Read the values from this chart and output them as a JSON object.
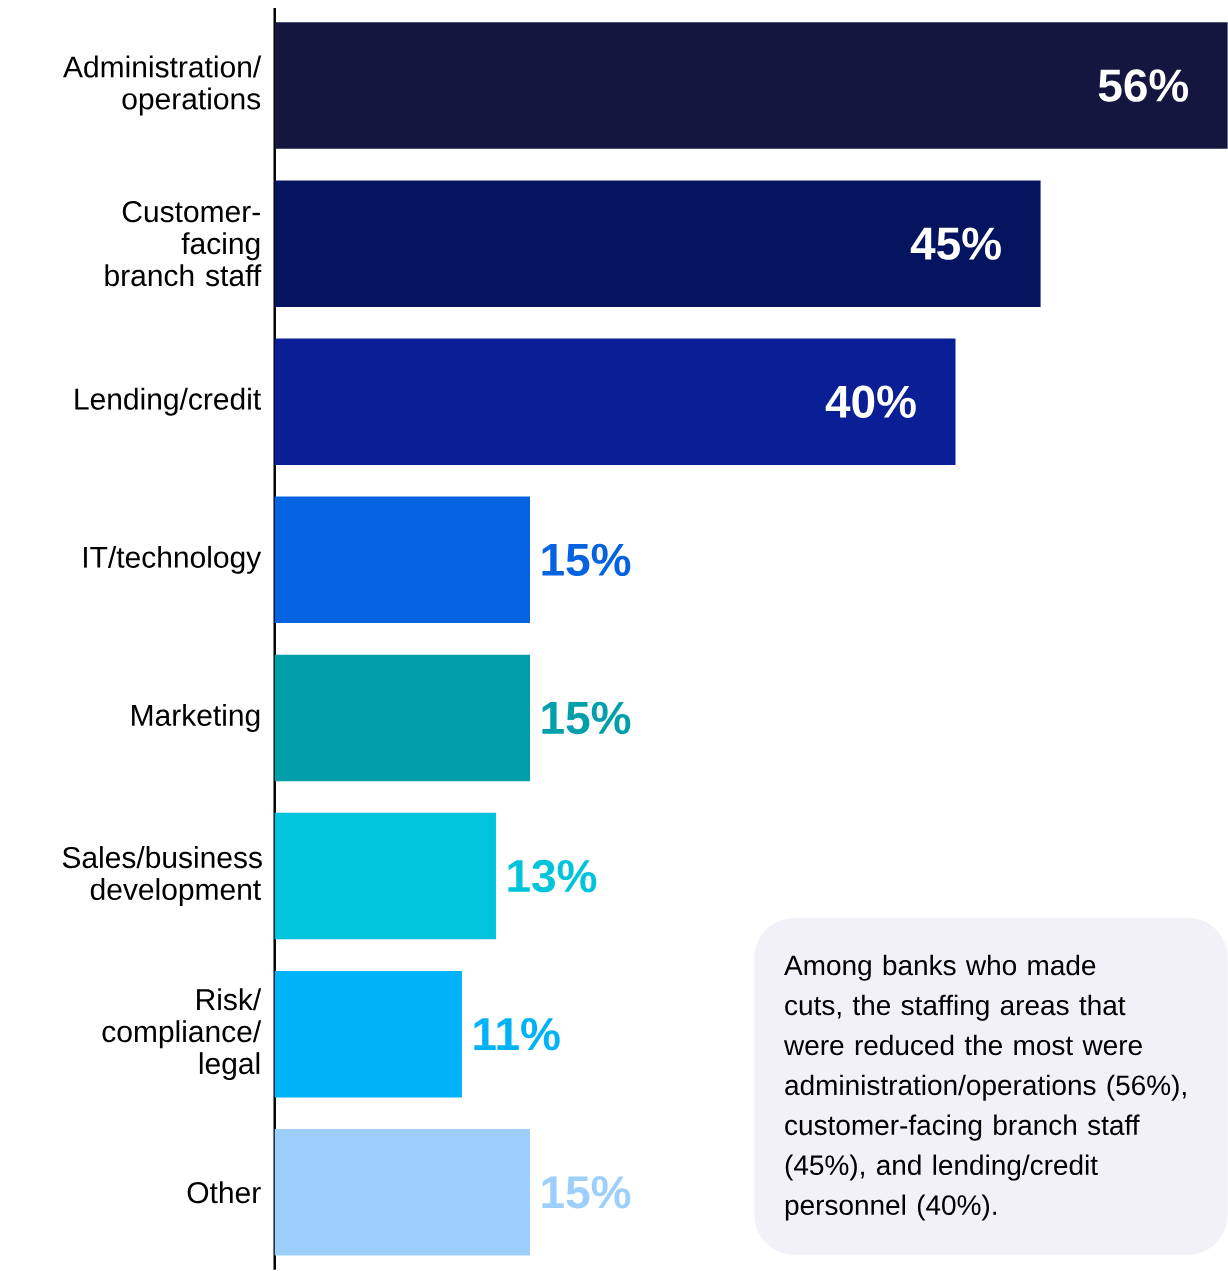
{
  "chart_data": {
    "type": "bar",
    "orientation": "horizontal",
    "categories": [
      "Administration/ operations",
      "Customer-facing branch staff",
      "Lending/credit",
      "IT/technology",
      "Marketing",
      "Sales/business development",
      "Risk/ compliance/ legal",
      "Other"
    ],
    "annotations": [
      "Among banks who made cuts, the staffing areas that were reduced the most were administration/operations (56%), customer-facing branch staff (45%), and lending/credit personnel (40%)."
    ],
    "values": [
      56,
      45,
      40,
      15,
      15,
      13,
      11,
      15
    ],
    "value_labels": [
      "56%",
      "45%",
      "40%",
      "15%",
      "15%",
      "13%",
      "11%",
      "15%"
    ],
    "colors": [
      "#14163f",
      "#05145e",
      "#0a1f96",
      "#0563e2",
      "#00a0aa",
      "#00c4dc",
      "#00b2f7",
      "#9ccffc"
    ]
  }
}
